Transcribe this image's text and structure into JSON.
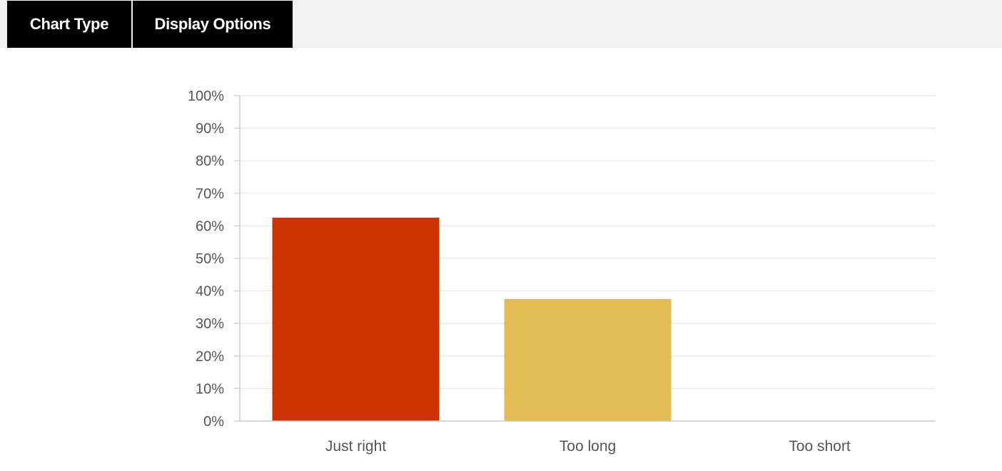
{
  "toolbar": {
    "tabs": [
      {
        "label": "Chart Type"
      },
      {
        "label": "Display Options"
      }
    ]
  },
  "chart_data": {
    "type": "bar",
    "categories": [
      "Just right",
      "Too long",
      "Too short"
    ],
    "values": [
      62.5,
      37.5,
      0
    ],
    "colors": [
      "#cc3300",
      "#e2bd56",
      "#cccccc"
    ],
    "ylim": [
      0,
      100
    ],
    "yticks": [
      0,
      10,
      20,
      30,
      40,
      50,
      60,
      70,
      80,
      90,
      100
    ],
    "ytick_format": "percent",
    "grid": true,
    "legend": "none"
  }
}
